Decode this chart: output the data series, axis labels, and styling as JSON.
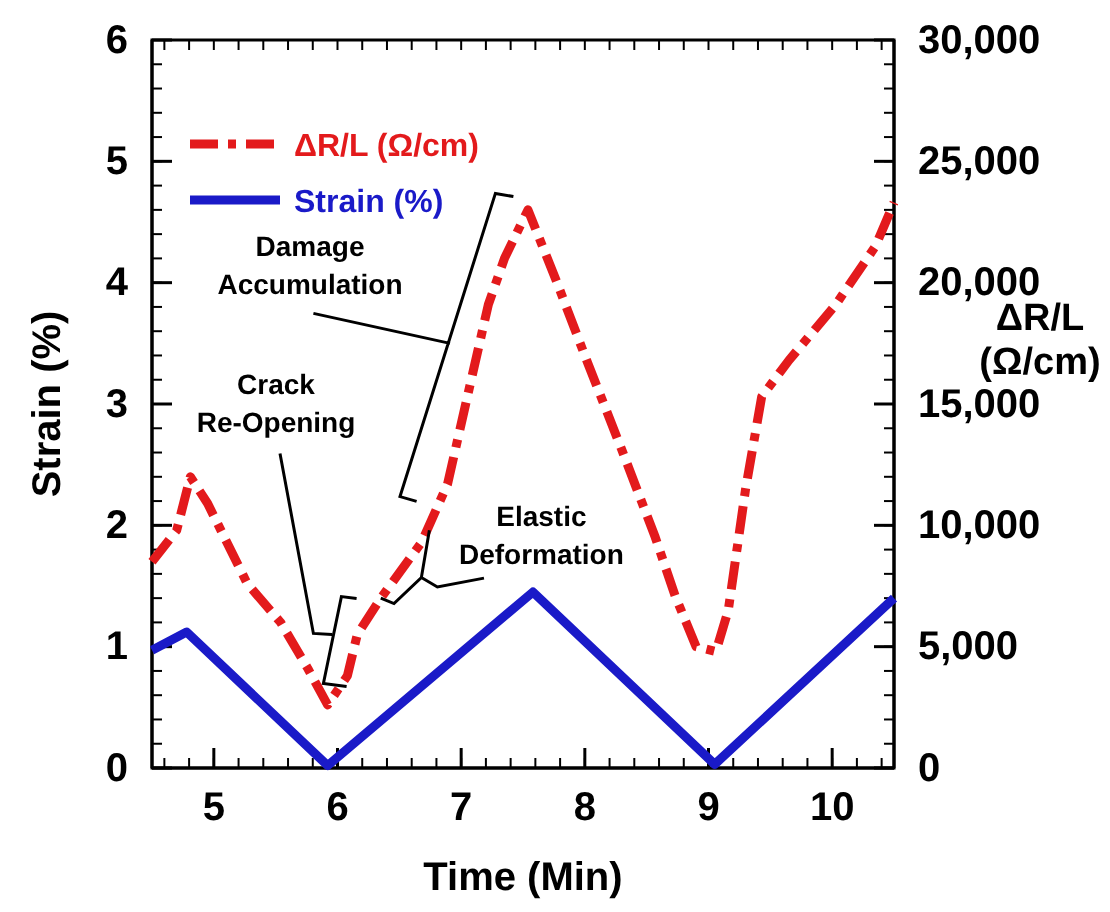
{
  "chart_data": {
    "type": "line",
    "xlabel": "Time (Min)",
    "ylabel": "Strain (%)",
    "y2label": "ΔR/L (Ω/cm)",
    "xlim": [
      4.5,
      10.5
    ],
    "xticks": [
      5,
      6,
      7,
      8,
      9,
      10
    ],
    "ylim": [
      0,
      6
    ],
    "yticks": [
      0,
      1,
      2,
      3,
      4,
      5,
      6
    ],
    "y2lim": [
      0,
      30000
    ],
    "y2ticks": [
      {
        "value": 0,
        "label": "0"
      },
      {
        "value": 5000,
        "label": "5,000"
      },
      {
        "value": 10000,
        "label": "10,000"
      },
      {
        "value": 15000,
        "label": "15,000"
      },
      {
        "value": 20000,
        "label": "20,000"
      },
      {
        "value": 25000,
        "label": "25,000"
      },
      {
        "value": 30000,
        "label": "30,000"
      }
    ],
    "legend": "top left",
    "grid": false,
    "annotations": [
      "Damage Accumulation",
      "Crack Re-Opening",
      {
        "text": "Elastic Deformation",
        "x": 6.35,
        "y": 1.4
      }
    ],
    "series": [
      {
        "name": "ΔR/L (Ω/cm)",
        "color": "#e31a1c",
        "axis": "y2",
        "line_style": "dashed",
        "x": [
          4.5,
          4.7,
          4.81,
          4.95,
          5.27,
          5.54,
          5.76,
          5.92,
          6.08,
          6.16,
          6.35,
          6.68,
          6.89,
          7.05,
          7.22,
          7.35,
          7.54,
          7.76,
          8.03,
          8.3,
          8.57,
          8.73,
          8.9,
          9.06,
          9.16,
          9.3,
          9.43,
          9.65,
          10.03,
          10.35,
          10.5
        ],
        "values": [
          8500,
          9800,
          12000,
          10900,
          7600,
          6000,
          4100,
          2600,
          3800,
          5500,
          7000,
          9300,
          11700,
          15300,
          19100,
          21000,
          23000,
          20200,
          16600,
          13100,
          9500,
          7100,
          5000,
          4800,
          6500,
          11500,
          15300,
          16800,
          19100,
          21500,
          23300
        ]
      },
      {
        "name": "Strain (%)",
        "color": "#1a1ac8",
        "line_style": "solid",
        "x": [
          4.5,
          4.78,
          5.92,
          7.58,
          9.05,
          10.5
        ],
        "values": [
          0.97,
          1.12,
          0.02,
          1.45,
          0.03,
          1.4
        ]
      }
    ]
  }
}
